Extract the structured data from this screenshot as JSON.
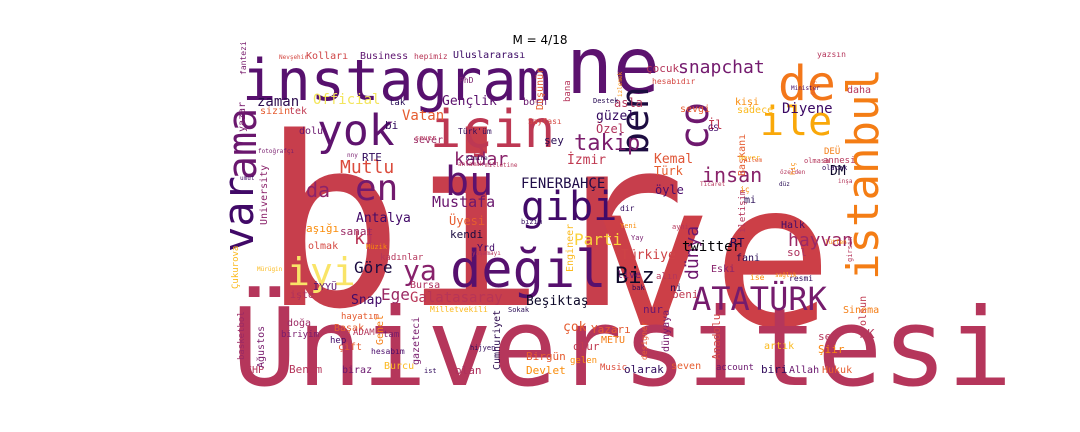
{
  "title": "M = 4/18",
  "words": [
    {
      "text": "bir",
      "color": "#c73e4c"
    },
    {
      "text": "ve",
      "color": "#cc3f47"
    },
    {
      "text": "Üniversitesi",
      "color": "#b5365b"
    },
    {
      "text": "instagram",
      "color": "#57106e"
    },
    {
      "text": "ne",
      "color": "#5c126e"
    },
    {
      "text": "değil",
      "color": "#56106e"
    },
    {
      "text": "için",
      "color": "#bd3853"
    },
    {
      "text": "yok",
      "color": "#5f136e"
    },
    {
      "text": "var",
      "color": "#410967"
    },
    {
      "text": "ama",
      "color": "#6a176e"
    },
    {
      "text": "istanbul",
      "color": "#f47d15"
    },
    {
      "text": "de",
      "color": "#f3771a"
    },
    {
      "text": "ile",
      "color": "#f9a809"
    },
    {
      "text": "co",
      "color": "#6e186e"
    },
    {
      "text": "ben",
      "color": "#1d0c41"
    },
    {
      "text": "gibi",
      "color": "#420a68"
    },
    {
      "text": "bu",
      "color": "#5d126e"
    },
    {
      "text": "en",
      "color": "#721a6e"
    },
    {
      "text": "ATATÜRK",
      "color": "#751b6d"
    },
    {
      "text": "iyi",
      "color": "#f9e468"
    },
    {
      "text": "ya",
      "color": "#87216b"
    },
    {
      "text": "da",
      "color": "#8d2369"
    },
    {
      "text": "ki",
      "color": "#b93556"
    },
    {
      "text": "takip",
      "color": "#7b1d6c"
    },
    {
      "text": "kadar",
      "color": "#88226a"
    },
    {
      "text": "insan",
      "color": "#88226a"
    },
    {
      "text": "dünya",
      "color": "#6e186e"
    },
    {
      "text": "hayvan",
      "color": "#9a2865"
    },
    {
      "text": "Biz",
      "color": "#0d0829"
    },
    {
      "text": "Mutlu",
      "color": "#db4b3c"
    },
    {
      "text": "Vatan",
      "color": "#e55c30"
    },
    {
      "text": "snapchat",
      "color": "#731a6e"
    },
    {
      "text": "Diyene",
      "color": "#3b0964"
    },
    {
      "text": "zaman",
      "color": "#2c0b4e"
    },
    {
      "text": "Official",
      "color": "#f3e55c"
    },
    {
      "text": "Gençlik",
      "color": "#5c126e"
    },
    {
      "text": "FENERBAHÇE",
      "color": "#1f0c48"
    },
    {
      "text": "Mustafa",
      "color": "#6a176e"
    },
    {
      "text": "Antalya",
      "color": "#420a68"
    },
    {
      "text": "Parti",
      "color": "#fad33a"
    },
    {
      "text": "Türkiye",
      "color": "#ce4347"
    },
    {
      "text": "Göre",
      "color": "#1b0c41"
    },
    {
      "text": "Ege",
      "color": "#9b2964"
    },
    {
      "text": "Snap",
      "color": "#420a68"
    },
    {
      "text": "Galatasaray",
      "color": "#b83556"
    },
    {
      "text": "Beşiktaş",
      "color": "#0d0829"
    },
    {
      "text": "twitter",
      "color": "#000004"
    },
    {
      "text": "Kemal",
      "color": "#e05536"
    },
    {
      "text": "Türk",
      "color": "#e65d2f"
    },
    {
      "text": "İzmir",
      "color": "#c03a51"
    },
    {
      "text": "güzel",
      "color": "#340a5f"
    },
    {
      "text": "Özel",
      "color": "#b0315b"
    },
    {
      "text": "asla",
      "color": "#b5365b"
    },
    {
      "text": "çocuk",
      "color": "#b5365b"
    },
    {
      "text": "Uluslararası",
      "color": "#3b0964"
    },
    {
      "text": "Business",
      "color": "#5c126e"
    },
    {
      "text": "Kolları",
      "color": "#cf4446"
    },
    {
      "text": "hepimiz",
      "color": "#b83556"
    },
    {
      "text": "yazar",
      "color": "#781c6d"
    },
    {
      "text": "sanat",
      "color": "#9b2964"
    },
    {
      "text": "aşığı",
      "color": "#f98c0a"
    },
    {
      "text": "olmak",
      "color": "#d44842"
    },
    {
      "text": "kendi",
      "color": "#1b0c41"
    },
    {
      "text": "Üyesi",
      "color": "#e65d2f"
    },
    {
      "text": "University",
      "color": "#8a226a"
    },
    {
      "text": "RTE",
      "color": "#300a5b"
    },
    {
      "text": "sever",
      "color": "#9c2a63"
    },
    {
      "text": "öyle",
      "color": "#4a0c6b"
    },
    {
      "text": "Halk",
      "color": "#420a68"
    },
    {
      "text": "DM",
      "color": "#0d0829"
    },
    {
      "text": "sol",
      "color": "#ad305d"
    },
    {
      "text": "RT",
      "color": "#280b54"
    },
    {
      "text": "fani",
      "color": "#280b54"
    },
    {
      "text": "Eski",
      "color": "#87216b"
    },
    {
      "text": "beni",
      "color": "#c03a51"
    },
    {
      "text": "nur",
      "color": "#6a176e"
    },
    {
      "text": "ni",
      "color": "#280b54"
    },
    {
      "text": "live",
      "color": "#6a176e"
    },
    {
      "text": "çok",
      "color": "#e55c30"
    },
    {
      "text": "Yazarı",
      "color": "#e45a31"
    },
    {
      "text": "olur",
      "color": "#c03a51"
    },
    {
      "text": "Birgün",
      "color": "#e55c30"
    },
    {
      "text": "dünyaya",
      "color": "#781c6d"
    },
    {
      "text": "Anadolu",
      "color": "#d14645"
    },
    {
      "text": "seven",
      "color": "#e65d2f"
    },
    {
      "text": "artık",
      "color": "#fbba1f"
    },
    {
      "text": "sen",
      "color": "#b5365b"
    },
    {
      "text": "Şiir",
      "color": "#f8850f"
    },
    {
      "text": "AK",
      "color": "#b5365b"
    },
    {
      "text": "olsun",
      "color": "#c03a51"
    },
    {
      "text": "Sinema",
      "color": "#f47d15"
    },
    {
      "text": "Hukuk",
      "color": "#e65d2f"
    },
    {
      "text": "Allah",
      "color": "#6a176e"
    },
    {
      "text": "biri",
      "color": "#300a5b"
    },
    {
      "text": "account",
      "color": "#6a176e"
    },
    {
      "text": "olarak",
      "color": "#300a5b"
    },
    {
      "text": "Music",
      "color": "#dc4c3b"
    },
    {
      "text": "Devlet",
      "color": "#f98c0a"
    },
    {
      "text": "Cumhuriyet",
      "color": "#2c0b4e"
    },
    {
      "text": "olan",
      "color": "#ad305d"
    },
    {
      "text": "Burcu",
      "color": "#fbb91f"
    },
    {
      "text": "biraz",
      "color": "#6a176e"
    },
    {
      "text": "Benim",
      "color": "#b5365b"
    },
    {
      "text": "CHP",
      "color": "#b5365b"
    },
    {
      "text": "basketbol",
      "color": "#9b2964"
    },
    {
      "text": "Ağustos",
      "color": "#781c6d"
    },
    {
      "text": "çift",
      "color": "#e55c30"
    },
    {
      "text": "Başak",
      "color": "#e65d2f"
    },
    {
      "text": "hep",
      "color": "#420a68"
    },
    {
      "text": "biriyim",
      "color": "#781c6d"
    },
    {
      "text": "doğa",
      "color": "#9c2a63"
    },
    {
      "text": "işte",
      "color": "#ad305d"
    },
    {
      "text": "İYYÜ",
      "color": "#5c126e"
    },
    {
      "text": "ADAM",
      "color": "#b5365b"
    },
    {
      "text": "tam",
      "color": "#781c6d"
    },
    {
      "text": "hayatım",
      "color": "#e55c30"
    },
    {
      "text": "Genel",
      "color": "#f47d15"
    },
    {
      "text": "gazeteci",
      "color": "#781c6d"
    },
    {
      "text": "hesabım",
      "color": "#4a0c6b"
    },
    {
      "text": "METU",
      "color": "#f47d15"
    },
    {
      "text": "Bursa",
      "color": "#ad305d"
    },
    {
      "text": "Engineer",
      "color": "#fbba1f"
    },
    {
      "text": "Yrd",
      "color": "#420a68"
    },
    {
      "text": "Çukurova",
      "color": "#fbba1f"
    },
    {
      "text": "dolu",
      "color": "#6a176e"
    },
    {
      "text": "tek",
      "color": "#c03a51"
    },
    {
      "text": "sizin",
      "color": "#e55c30"
    },
    {
      "text": "tak",
      "color": "#280b54"
    },
    {
      "text": "bi",
      "color": "#300a5b"
    },
    {
      "text": "born",
      "color": "#6a176e"
    },
    {
      "text": "Düşünür",
      "color": "#e55c30"
    },
    {
      "text": "bana",
      "color": "#b5365b"
    },
    {
      "text": "hesabıdır",
      "color": "#d44842"
    },
    {
      "text": "daha",
      "color": "#b5365b"
    },
    {
      "text": "yazsın",
      "color": "#b5365b"
    },
    {
      "text": "kişi",
      "color": "#f98c0a"
    },
    {
      "text": "sadece",
      "color": "#fbba1f"
    },
    {
      "text": "Başkanı",
      "color": "#e55c30"
    },
    {
      "text": "İl",
      "color": "#c03a51"
    },
    {
      "text": "GS",
      "color": "#420a68"
    },
    {
      "text": "şey",
      "color": "#280b54"
    },
    {
      "text": "sevgi",
      "color": "#e65d2f"
    },
    {
      "text": "iletişim",
      "color": "#b5365b"
    },
    {
      "text": "DEÜ",
      "color": "#f47d15"
    },
    {
      "text": "annesi",
      "color": "#b5365b"
    },
    {
      "text": "mi",
      "color": "#280b54"
    },
    {
      "text": "Sayfası",
      "color": "#d44842"
    },
    {
      "text": "Destek",
      "color": "#280b54"
    },
    {
      "text": "Türk'üm",
      "color": "#300a5b"
    },
    {
      "text": "Nevşehir",
      "color": "#d44842"
    },
    {
      "text": "PhD",
      "color": "#781c6d"
    },
    {
      "text": "fantezi",
      "color": "#781c6d"
    },
    {
      "text": "fotoğrafçı",
      "color": "#781c6d"
    },
    {
      "text": "umut",
      "color": "#420a68"
    },
    {
      "text": "Milletvekili",
      "color": "#fbba1f"
    },
    {
      "text": "Sokak",
      "color": "#280b54"
    },
    {
      "text": "hijyen",
      "color": "#300a5b"
    },
    {
      "text": "gelen",
      "color": "#f98c0a"
    },
    {
      "text": "designer",
      "color": "#e55c30"
    },
    {
      "text": "resmi",
      "color": "#300a5b"
    },
    {
      "text": "girsin",
      "color": "#b5365b"
    },
    {
      "text": "lütfen",
      "color": "#f98c0a"
    },
    {
      "text": "inşa",
      "color": "#b5365b"
    },
    {
      "text": "olacak",
      "color": "#300a5b"
    },
    {
      "text": "Ticaret",
      "color": "#b5365b"
    },
    {
      "text": "düz",
      "color": "#280b54"
    },
    {
      "text": "özelden",
      "color": "#b5365b"
    },
    {
      "text": "bizim",
      "color": "#300a5b"
    },
    {
      "text": "dir",
      "color": "#300a5b"
    },
    {
      "text": "milletine",
      "color": "#b5365b"
    },
    {
      "text": "Kimine",
      "color": "#280b54"
    },
    {
      "text": "anlamak",
      "color": "#b5365b"
    },
    {
      "text": "Yay",
      "color": "#781c6d"
    },
    {
      "text": "alın",
      "color": "#b5365b"
    },
    {
      "text": "bak",
      "color": "#300a5b"
    },
    {
      "text": "Müzik",
      "color": "#f98c0a"
    },
    {
      "text": "kadınlar",
      "color": "#b5365b"
    },
    {
      "text": "Minister",
      "color": "#420a68"
    },
    {
      "text": "Genç",
      "color": "#e55c30"
    },
    {
      "text": "Never",
      "color": "#fbba1f"
    },
    {
      "text": "hiç",
      "color": "#f98c0a"
    },
    {
      "text": "ist",
      "color": "#300a5b"
    },
    {
      "text": "yaşamayı",
      "color": "#b5365b"
    },
    {
      "text": "nny",
      "color": "#781c6d"
    },
    {
      "text": "Mürügin",
      "color": "#fbba1f"
    },
    {
      "text": "ise",
      "color": "#f98c0a"
    },
    {
      "text": "sağlık",
      "color": "#f98c0a"
    },
    {
      "text": "olmasa",
      "color": "#b5365b"
    },
    {
      "text": "izlemek",
      "color": "#f98c0a"
    },
    {
      "text": "sever",
      "color": "#b5365b"
    },
    {
      "text": "Yeni",
      "color": "#f98c0a"
    },
    {
      "text": "ayni",
      "color": "#b5365b"
    },
    {
      "text": "iç",
      "color": "#f98c0a"
    },
    {
      "text": "Ailem",
      "color": "#e55c30"
    }
  ]
}
